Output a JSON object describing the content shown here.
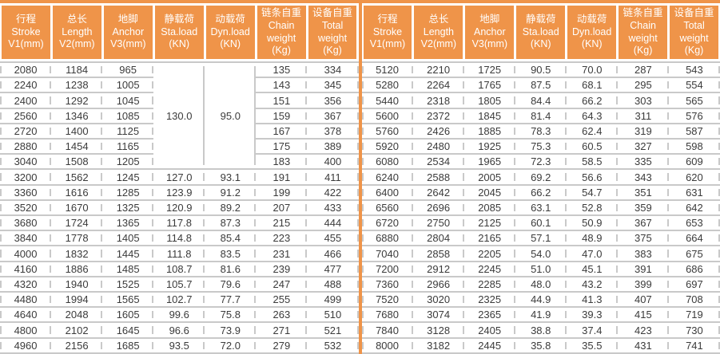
{
  "colors": {
    "accent": "#EF9449",
    "border": "#C9C9C9",
    "header_text": "#FFFFFF",
    "cell_text": "#3B3B3B",
    "background": "#FFFFFF"
  },
  "header_columns": [
    {
      "name": "stroke",
      "lines": [
        "行程",
        "Stroke",
        "V1(mm)"
      ]
    },
    {
      "name": "length",
      "lines": [
        "总长",
        "Length",
        "V2(mm)"
      ]
    },
    {
      "name": "anchor",
      "lines": [
        "地脚",
        "Anchor",
        "V3(mm)"
      ]
    },
    {
      "name": "static-load",
      "lines": [
        "静载荷",
        "Sta.load",
        "(KN)"
      ]
    },
    {
      "name": "dynamic-load",
      "lines": [
        "动载荷",
        "Dyn.load",
        "(KN)"
      ]
    },
    {
      "name": "chain-weight",
      "lines": [
        "链条自重",
        "Chain",
        "weight",
        "(Kg)"
      ]
    },
    {
      "name": "total-weight",
      "lines": [
        "设备自重",
        "Total",
        "weight",
        "(Kg)"
      ]
    }
  ],
  "left_table": {
    "rowspans": {
      "0": {
        "3": 7,
        "4": 7
      }
    },
    "rows": [
      [
        "2080",
        "1184",
        "965",
        "130.0",
        "95.0",
        "135",
        "334"
      ],
      [
        "2240",
        "1238",
        "1005",
        null,
        null,
        "143",
        "345"
      ],
      [
        "2400",
        "1292",
        "1045",
        null,
        null,
        "151",
        "356"
      ],
      [
        "2560",
        "1346",
        "1085",
        null,
        null,
        "159",
        "367"
      ],
      [
        "2720",
        "1400",
        "1125",
        null,
        null,
        "167",
        "378"
      ],
      [
        "2880",
        "1454",
        "1165",
        null,
        null,
        "175",
        "389"
      ],
      [
        "3040",
        "1508",
        "1205",
        null,
        null,
        "183",
        "400"
      ],
      [
        "3200",
        "1562",
        "1245",
        "127.0",
        "93.1",
        "191",
        "411"
      ],
      [
        "3360",
        "1616",
        "1285",
        "123.9",
        "91.2",
        "199",
        "422"
      ],
      [
        "3520",
        "1670",
        "1325",
        "120.9",
        "89.2",
        "207",
        "433"
      ],
      [
        "3680",
        "1724",
        "1365",
        "117.8",
        "87.3",
        "215",
        "444"
      ],
      [
        "3840",
        "1778",
        "1405",
        "114.8",
        "85.4",
        "223",
        "455"
      ],
      [
        "4000",
        "1832",
        "1445",
        "111.8",
        "83.5",
        "231",
        "466"
      ],
      [
        "4160",
        "1886",
        "1485",
        "108.7",
        "81.6",
        "239",
        "477"
      ],
      [
        "4320",
        "1940",
        "1525",
        "105.7",
        "79.6",
        "247",
        "488"
      ],
      [
        "4480",
        "1994",
        "1565",
        "102.7",
        "77.7",
        "255",
        "499"
      ],
      [
        "4640",
        "2048",
        "1605",
        "99.6",
        "75.8",
        "263",
        "510"
      ],
      [
        "4800",
        "2102",
        "1645",
        "96.6",
        "73.9",
        "271",
        "521"
      ],
      [
        "4960",
        "2156",
        "1685",
        "93.5",
        "72.0",
        "279",
        "532"
      ]
    ]
  },
  "right_table": {
    "rowspans": {},
    "rows": [
      [
        "5120",
        "2210",
        "1725",
        "90.5",
        "70.0",
        "287",
        "543"
      ],
      [
        "5280",
        "2264",
        "1765",
        "87.5",
        "68.1",
        "295",
        "554"
      ],
      [
        "5440",
        "2318",
        "1805",
        "84.4",
        "66.2",
        "303",
        "565"
      ],
      [
        "5600",
        "2372",
        "1845",
        "81.4",
        "64.3",
        "311",
        "576"
      ],
      [
        "5760",
        "2426",
        "1885",
        "78.3",
        "62.4",
        "319",
        "587"
      ],
      [
        "5920",
        "2480",
        "1925",
        "75.3",
        "60.5",
        "327",
        "598"
      ],
      [
        "6080",
        "2534",
        "1965",
        "72.3",
        "58.5",
        "335",
        "609"
      ],
      [
        "6240",
        "2588",
        "2005",
        "69.2",
        "56.6",
        "343",
        "620"
      ],
      [
        "6400",
        "2642",
        "2045",
        "66.2",
        "54.7",
        "351",
        "631"
      ],
      [
        "6560",
        "2696",
        "2085",
        "63.1",
        "52.8",
        "359",
        "642"
      ],
      [
        "6720",
        "2750",
        "2125",
        "60.1",
        "50.9",
        "367",
        "653"
      ],
      [
        "6880",
        "2804",
        "2165",
        "57.1",
        "48.9",
        "375",
        "664"
      ],
      [
        "7040",
        "2858",
        "2205",
        "54.0",
        "47.0",
        "383",
        "675"
      ],
      [
        "7200",
        "2912",
        "2245",
        "51.0",
        "45.1",
        "391",
        "686"
      ],
      [
        "7360",
        "2966",
        "2285",
        "48.0",
        "43.2",
        "399",
        "697"
      ],
      [
        "7520",
        "3020",
        "2325",
        "44.9",
        "41.3",
        "407",
        "708"
      ],
      [
        "7680",
        "3074",
        "2365",
        "41.9",
        "39.3",
        "415",
        "719"
      ],
      [
        "7840",
        "3128",
        "2405",
        "38.8",
        "37.4",
        "423",
        "730"
      ],
      [
        "8000",
        "3182",
        "2445",
        "35.8",
        "35.5",
        "431",
        "741"
      ]
    ]
  }
}
